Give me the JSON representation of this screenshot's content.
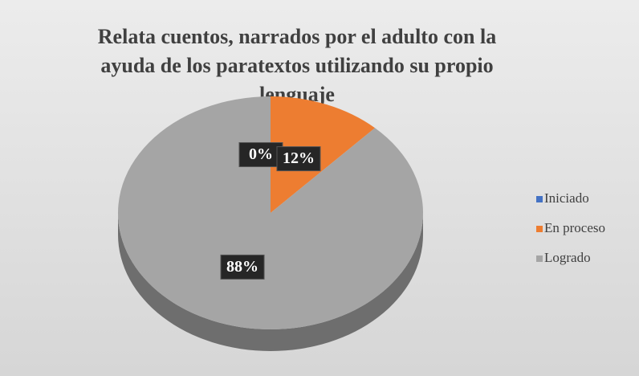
{
  "chart_data": {
    "type": "pie",
    "title": "Relata cuentos, narrados por el adulto con la ayuda de los paratextos utilizando su propio lenguaje",
    "categories": [
      "Iniciado",
      "En proceso",
      "Logrado"
    ],
    "values": [
      0,
      12,
      88
    ],
    "value_labels": [
      "0%",
      "12%",
      "88%"
    ],
    "colors": [
      "#4472c4",
      "#ed7d31",
      "#a5a5a5"
    ],
    "legend": "right"
  }
}
